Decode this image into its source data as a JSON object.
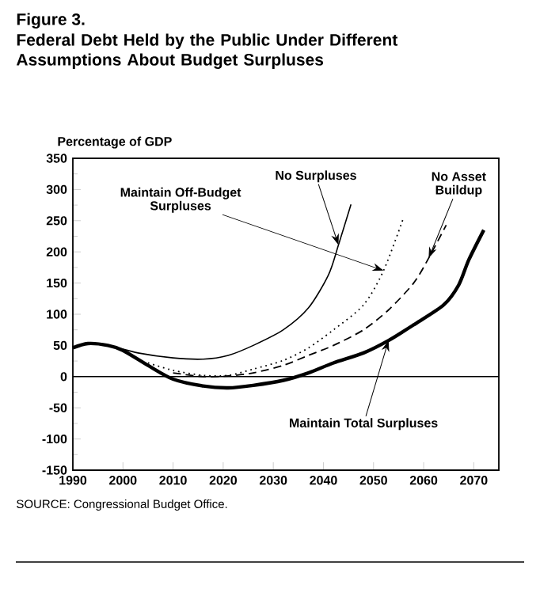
{
  "chart_data": {
    "type": "line",
    "title": "Figure 3.",
    "subtitle": "Federal Debt Held by the Public Under Different Assumptions About Budget Surpluses",
    "ylabel": "Percentage of GDP",
    "xlim": [
      1990,
      2075
    ],
    "xticks": [
      1990,
      2000,
      2010,
      2020,
      2030,
      2040,
      2050,
      2060,
      2070
    ],
    "ylim": [
      -150,
      350
    ],
    "yticks": [
      -150,
      -100,
      -50,
      0,
      50,
      100,
      150,
      200,
      250,
      300,
      350
    ],
    "grid": false,
    "marker": "none",
    "ref_lines": [
      {
        "axis": "y",
        "value": 0,
        "color": "#000000",
        "line_style": "solid"
      }
    ],
    "series": [
      {
        "name": "No Surpluses",
        "color": "#000000",
        "line_style": "solid",
        "x": [
          1990,
          1993,
          1997,
          2003,
          2010,
          2016,
          2021,
          2026,
          2032,
          2037,
          2041,
          2043,
          2045.5
        ],
        "values": [
          46,
          53,
          50,
          38,
          30,
          28,
          34,
          50,
          75,
          110,
          163,
          211,
          276
        ]
      },
      {
        "name": "Maintain Off-Budget Surpluses",
        "color": "#000000",
        "line_style": "dotted",
        "x": [
          2005,
          2010,
          2016,
          2021,
          2026,
          2032,
          2037,
          2042,
          2048,
          2052,
          2056
        ],
        "values": [
          22,
          10,
          2,
          2,
          12,
          26,
          46,
          75,
          115,
          170,
          255
        ]
      },
      {
        "name": "No Asset Buildup",
        "color": "#000000",
        "line_style": "dashed",
        "x": [
          2010,
          2016,
          2021,
          2026,
          2032,
          2037,
          2042,
          2048,
          2053,
          2058,
          2061,
          2064.5
        ],
        "values": [
          6,
          0,
          1,
          6,
          18,
          34,
          50,
          75,
          107,
          150,
          190,
          243
        ]
      },
      {
        "name": "Maintain Total Surpluses",
        "color": "#000000",
        "line_style": "solid",
        "x": [
          1990,
          1993,
          1997,
          2000,
          2005,
          2010,
          2016,
          2021,
          2026,
          2032,
          2037,
          2042,
          2048,
          2053,
          2058,
          2064,
          2067,
          2069,
          2072
        ],
        "values": [
          46,
          53,
          50,
          42,
          18,
          -4,
          -15,
          -18,
          -14,
          -6,
          6,
          22,
          38,
          58,
          83,
          115,
          147,
          187,
          235
        ]
      }
    ],
    "annotations": [
      "SOURCE:   Congressional Budget Office."
    ]
  }
}
